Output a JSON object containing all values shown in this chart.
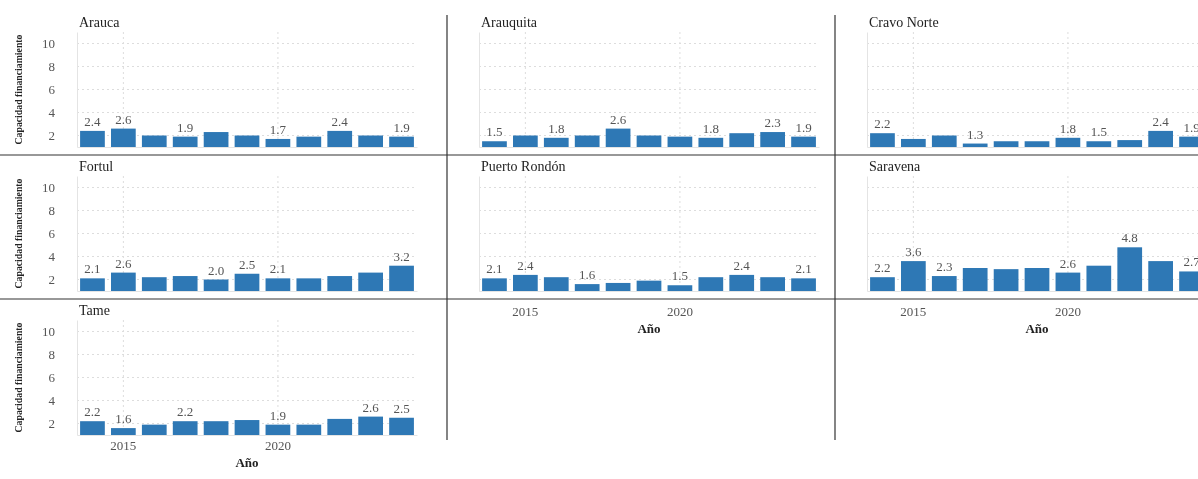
{
  "chart_data": [
    {
      "type": "bar",
      "title": "Arauca",
      "ylabel": "Capacidad financiamiento",
      "categories": [
        null,
        "2015",
        null,
        null,
        null,
        null,
        "2020",
        null,
        null,
        null,
        null
      ],
      "values": [
        2.4,
        2.6,
        2.0,
        1.9,
        2.3,
        2.0,
        1.7,
        1.9,
        2.4,
        2.0,
        1.9
      ],
      "value_labels": [
        "2.4",
        "2.6",
        null,
        "1.9",
        null,
        null,
        "1.7",
        null,
        "2.4",
        null,
        "1.9"
      ],
      "color": "#2e78b5",
      "ylim": [
        1,
        11
      ],
      "yticks": [
        2,
        4,
        6,
        8,
        10
      ],
      "grid": true,
      "tick_labels": "y"
    },
    {
      "type": "bar",
      "title": "Arauquita",
      "categories": [
        null,
        "2015",
        null,
        null,
        null,
        null,
        "2020",
        null,
        null,
        null,
        null
      ],
      "values": [
        1.5,
        2.0,
        1.8,
        2.0,
        2.6,
        2.0,
        1.9,
        1.8,
        2.2,
        2.3,
        1.9
      ],
      "value_labels": [
        "1.5",
        null,
        "1.8",
        null,
        "2.6",
        null,
        null,
        "1.8",
        null,
        "2.3",
        "1.9"
      ],
      "color": "#2e78b5",
      "ylim": [
        1,
        11
      ],
      "yticks": [
        2,
        4,
        6,
        8,
        10
      ],
      "grid": true,
      "tick_labels": false
    },
    {
      "type": "bar",
      "title": "Cravo Norte",
      "categories": [
        null,
        "2015",
        null,
        null,
        null,
        null,
        "2020",
        null,
        null,
        null,
        null
      ],
      "values": [
        2.2,
        1.7,
        2.0,
        1.3,
        1.5,
        1.5,
        1.8,
        1.5,
        1.6,
        2.4,
        1.9
      ],
      "value_labels": [
        "2.2",
        null,
        null,
        "1.3",
        null,
        null,
        "1.8",
        "1.5",
        null,
        "2.4",
        "1.9"
      ],
      "color": "#2e78b5",
      "ylim": [
        1,
        11
      ],
      "yticks": [
        2,
        4,
        6,
        8,
        10
      ],
      "grid": true,
      "tick_labels": false
    },
    {
      "type": "bar",
      "title": "Fortul",
      "ylabel": "Capacidad financiamiento",
      "categories": [
        null,
        "2015",
        null,
        null,
        null,
        null,
        "2020",
        null,
        null,
        null,
        null
      ],
      "values": [
        2.1,
        2.6,
        2.2,
        2.3,
        2.0,
        2.5,
        2.1,
        2.1,
        2.3,
        2.6,
        3.2
      ],
      "value_labels": [
        "2.1",
        "2.6",
        null,
        null,
        "2.0",
        "2.5",
        "2.1",
        null,
        null,
        null,
        "3.2"
      ],
      "color": "#2e78b5",
      "ylim": [
        1,
        11
      ],
      "yticks": [
        2,
        4,
        6,
        8,
        10
      ],
      "grid": true,
      "tick_labels": "y"
    },
    {
      "type": "bar",
      "title": "Puerto Rondón",
      "xlabel": "Año",
      "categories": [
        null,
        "2015",
        null,
        null,
        null,
        null,
        "2020",
        null,
        null,
        null,
        null
      ],
      "values": [
        2.1,
        2.4,
        2.2,
        1.6,
        1.7,
        1.9,
        1.5,
        2.2,
        2.4,
        2.2,
        2.1
      ],
      "value_labels": [
        "2.1",
        "2.4",
        null,
        "1.6",
        null,
        null,
        "1.5",
        null,
        "2.4",
        null,
        "2.1"
      ],
      "color": "#2e78b5",
      "ylim": [
        1,
        11
      ],
      "yticks": [
        2,
        4,
        6,
        8,
        10
      ],
      "grid": true,
      "tick_labels": "x"
    },
    {
      "type": "bar",
      "title": "Saravena",
      "xlabel": "Año",
      "categories": [
        null,
        "2015",
        null,
        null,
        null,
        null,
        "2020",
        null,
        null,
        null,
        null
      ],
      "values": [
        2.2,
        3.6,
        2.3,
        3.0,
        2.9,
        3.0,
        2.6,
        3.2,
        4.8,
        3.6,
        2.7
      ],
      "value_labels": [
        "2.2",
        "3.6",
        "2.3",
        null,
        null,
        null,
        "2.6",
        null,
        "4.8",
        null,
        "2.7"
      ],
      "color": "#2e78b5",
      "ylim": [
        1,
        11
      ],
      "yticks": [
        2,
        4,
        6,
        8,
        10
      ],
      "grid": true,
      "tick_labels": "x"
    },
    {
      "type": "bar",
      "title": "Tame",
      "xlabel": "Año",
      "ylabel": "Capacidad financiamiento",
      "categories": [
        null,
        "2015",
        null,
        null,
        null,
        null,
        "2020",
        null,
        null,
        null,
        null
      ],
      "values": [
        2.2,
        1.6,
        1.9,
        2.2,
        2.2,
        2.3,
        1.9,
        1.9,
        2.4,
        2.6,
        2.5
      ],
      "value_labels": [
        "2.2",
        "1.6",
        null,
        "2.2",
        null,
        null,
        "1.9",
        null,
        null,
        "2.6",
        "2.5"
      ],
      "color": "#2e78b5",
      "ylim": [
        1,
        11
      ],
      "yticks": [
        2,
        4,
        6,
        8,
        10
      ],
      "grid": true
    }
  ]
}
